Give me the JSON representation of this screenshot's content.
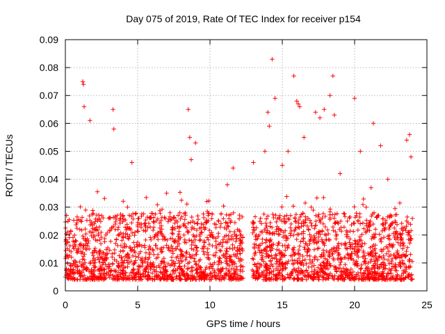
{
  "chart_data": {
    "type": "scatter",
    "title": "Day 075 of 2019, Rate Of TEC Index for receiver p154",
    "xlabel": "GPS time / hours",
    "ylabel": "ROTI / TECUs",
    "xlim": [
      0,
      25
    ],
    "ylim": [
      0,
      0.09
    ],
    "xticks": [
      0,
      5,
      10,
      15,
      20,
      25
    ],
    "xtick_labels": [
      "0",
      "5",
      "10",
      "15",
      "20",
      "25"
    ],
    "yticks": [
      0,
      0.01,
      0.02,
      0.03,
      0.04,
      0.05,
      0.06,
      0.07,
      0.08,
      0.09
    ],
    "ytick_labels": [
      "0",
      "0.01",
      "0.02",
      "0.03",
      "0.04",
      "0.05",
      "0.06",
      "0.07",
      "0.08",
      "0.09"
    ],
    "grid": true,
    "marker": "plus",
    "color": "#ff0000",
    "data_gap_hours": [
      12.3,
      12.9
    ],
    "series": [
      {
        "name": "ROTI",
        "x": [
          0.2,
          0.4,
          0.7,
          1.0,
          1.2,
          1.25,
          1.3,
          1.7,
          2.2,
          2.8,
          3.3,
          3.35,
          3.8,
          4.3,
          4.6,
          5.2,
          5.8,
          6.4,
          7.0,
          7.6,
          8.2,
          8.5,
          8.6,
          8.7,
          9.0,
          9.4,
          10.0,
          10.6,
          11.2,
          11.6,
          12.1,
          13.0,
          13.4,
          13.8,
          14.0,
          14.1,
          14.3,
          14.5,
          15.0,
          15.4,
          15.8,
          16.0,
          16.1,
          16.2,
          16.5,
          17.0,
          17.3,
          17.6,
          17.9,
          18.3,
          18.5,
          18.6,
          19.0,
          19.5,
          20.0,
          20.4,
          20.8,
          21.3,
          21.8,
          22.3,
          22.8,
          23.2,
          23.6,
          23.8,
          23.9
        ],
        "y": [
          0.012,
          0.014,
          0.018,
          0.022,
          0.075,
          0.074,
          0.066,
          0.061,
          0.018,
          0.02,
          0.065,
          0.058,
          0.026,
          0.03,
          0.046,
          0.014,
          0.012,
          0.013,
          0.035,
          0.015,
          0.02,
          0.065,
          0.055,
          0.047,
          0.053,
          0.024,
          0.02,
          0.025,
          0.038,
          0.044,
          0.018,
          0.046,
          0.02,
          0.05,
          0.064,
          0.059,
          0.083,
          0.069,
          0.045,
          0.05,
          0.077,
          0.068,
          0.067,
          0.066,
          0.055,
          0.03,
          0.064,
          0.062,
          0.065,
          0.07,
          0.077,
          0.063,
          0.042,
          0.025,
          0.069,
          0.05,
          0.03,
          0.06,
          0.052,
          0.04,
          0.025,
          0.02,
          0.054,
          0.056,
          0.048
        ]
      }
    ],
    "dense_band": {
      "description_free_stats": true,
      "typical_range": [
        0.004,
        0.028
      ]
    }
  }
}
